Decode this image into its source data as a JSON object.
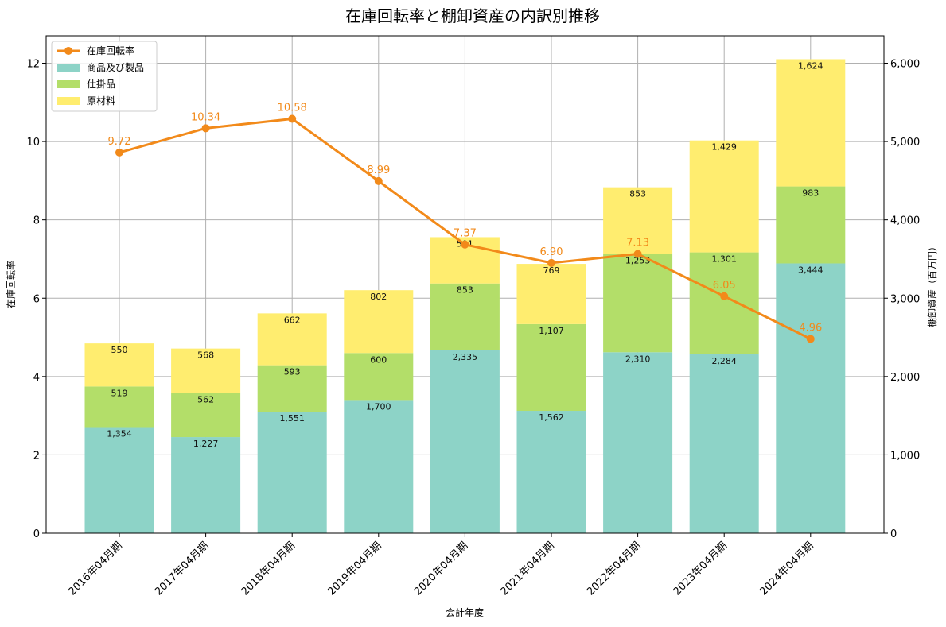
{
  "chart_data": {
    "type": "bar",
    "title": "在庫回転率と棚卸資産の内訳別推移",
    "xlabel": "会計年度",
    "ylabel_left": "在庫回転率",
    "ylabel_right": "棚卸資産（百万円）",
    "categories": [
      "2016年04月期",
      "2017年04月期",
      "2018年04月期",
      "2019年04月期",
      "2020年04月期",
      "2021年04月期",
      "2022年04月期",
      "2023年04月期",
      "2024年04月期"
    ],
    "stacked_series": [
      {
        "name": "商品及び製品",
        "color": "#8dd3c7",
        "values": [
          1354,
          1227,
          1551,
          1700,
          2335,
          1562,
          2310,
          2284,
          3444
        ],
        "labels": [
          "1,354",
          "1,227",
          "1,551",
          "1,700",
          "2,335",
          "1,562",
          "2,310",
          "2,284",
          "3,444"
        ]
      },
      {
        "name": "仕掛品",
        "color": "#b3de69",
        "values": [
          519,
          562,
          593,
          600,
          853,
          1107,
          1253,
          1301,
          983
        ],
        "labels": [
          "519",
          "562",
          "593",
          "600",
          "853",
          "1,107",
          "1,253",
          "1,301",
          "983"
        ]
      },
      {
        "name": "原材料",
        "color": "#ffed6f",
        "values": [
          550,
          568,
          662,
          802,
          591,
          769,
          853,
          1429,
          1624
        ],
        "labels": [
          "550",
          "568",
          "662",
          "802",
          "591",
          "769",
          "853",
          "1,429",
          "1,624"
        ]
      }
    ],
    "line_series": {
      "name": "在庫回転率",
      "color": "#f28a1a",
      "values": [
        9.72,
        10.34,
        10.58,
        8.99,
        7.37,
        6.9,
        7.13,
        6.05,
        4.96
      ],
      "labels": [
        "9.72",
        "10.34",
        "10.58",
        "8.99",
        "7.37",
        "6.90",
        "7.13",
        "6.05",
        "4.96"
      ]
    },
    "ylim_left": [
      0,
      12.7
    ],
    "ylim_right": [
      0,
      6350
    ],
    "yticks_left": [
      "0",
      "2",
      "4",
      "6",
      "8",
      "10",
      "12"
    ],
    "yticks_right": [
      "0",
      "1,000",
      "2,000",
      "3,000",
      "4,000",
      "5,000",
      "6,000"
    ],
    "grid": true,
    "legend_position": "top-left"
  }
}
